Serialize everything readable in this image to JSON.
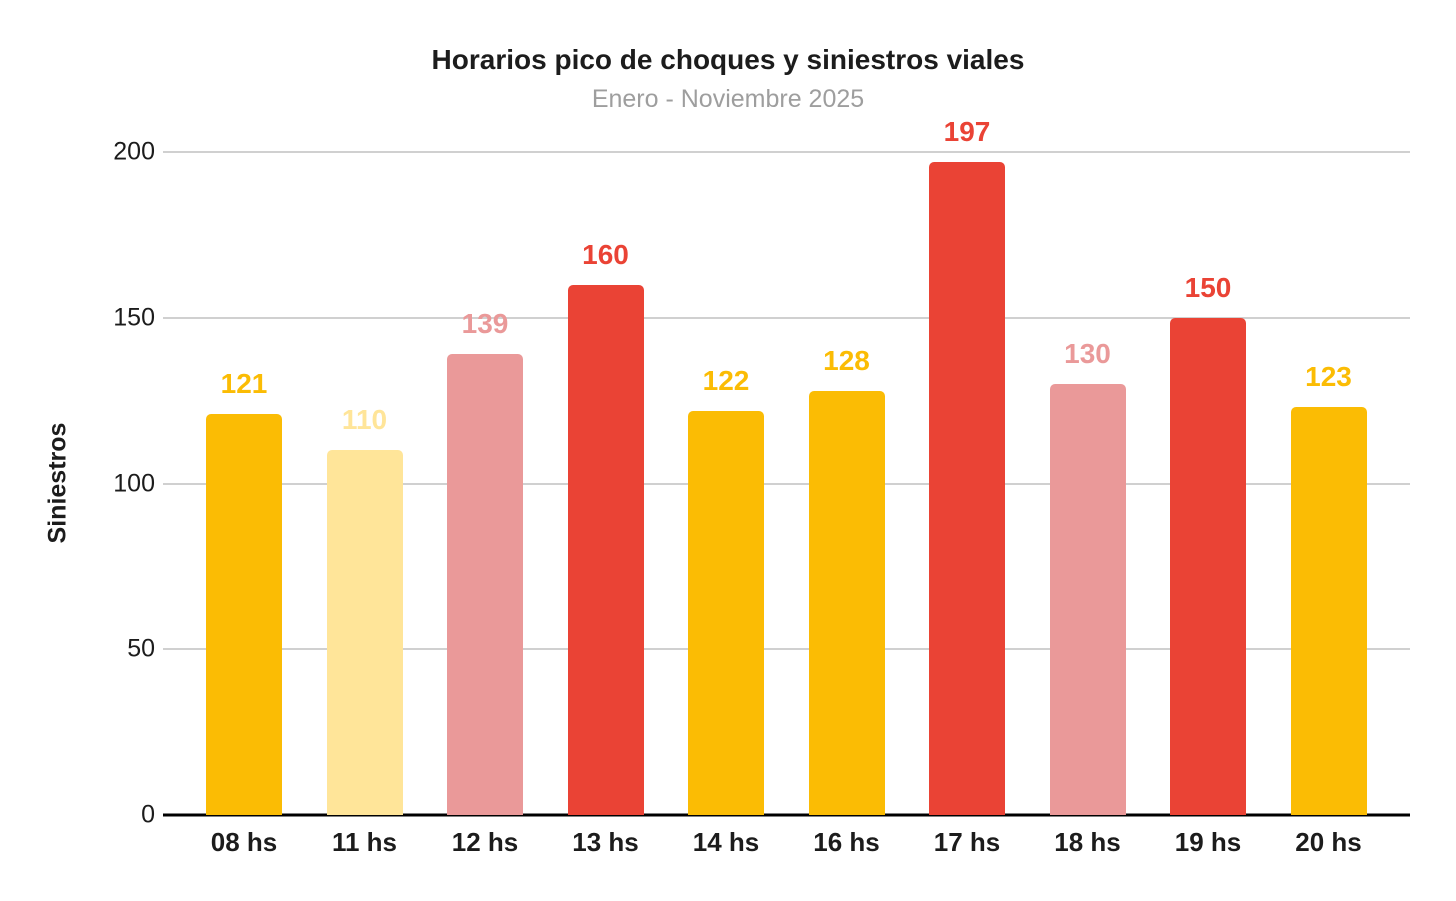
{
  "header": {
    "title": "Horarios pico de choques y siniestros viales",
    "subtitle": "Enero - Noviembre 2025"
  },
  "chart_data": {
    "type": "bar",
    "title": "Horarios pico de choques y siniestros viales",
    "subtitle": "Enero - Noviembre 2025",
    "xlabel": "",
    "ylabel": "Siniestros",
    "categories": [
      "08 hs",
      "11 hs",
      "12 hs",
      "13 hs",
      "14 hs",
      "16 hs",
      "17 hs",
      "18 hs",
      "19 hs",
      "20 hs"
    ],
    "values": [
      121,
      110,
      139,
      160,
      122,
      128,
      197,
      130,
      150,
      123
    ],
    "bar_colors": [
      "#FBBC04",
      "#FFE599",
      "#EA9999",
      "#EA4335",
      "#FBBC04",
      "#FBBC04",
      "#EA4335",
      "#EA9999",
      "#EA4335",
      "#FBBC04"
    ],
    "ylim": [
      0,
      200
    ],
    "yticks": [
      0,
      50,
      100,
      150,
      200
    ],
    "grid": true,
    "legend": false,
    "value_labels_shown": true
  },
  "colors": {
    "orange": "#FBBC04",
    "pale_yellow": "#FFE599",
    "pink": "#EA9999",
    "red": "#EA4335",
    "gridline": "#d0d0d0",
    "axis_line": "#000000",
    "title_text": "#1c1c1c",
    "subtitle_text": "#9e9e9e",
    "background": "#ffffff"
  }
}
